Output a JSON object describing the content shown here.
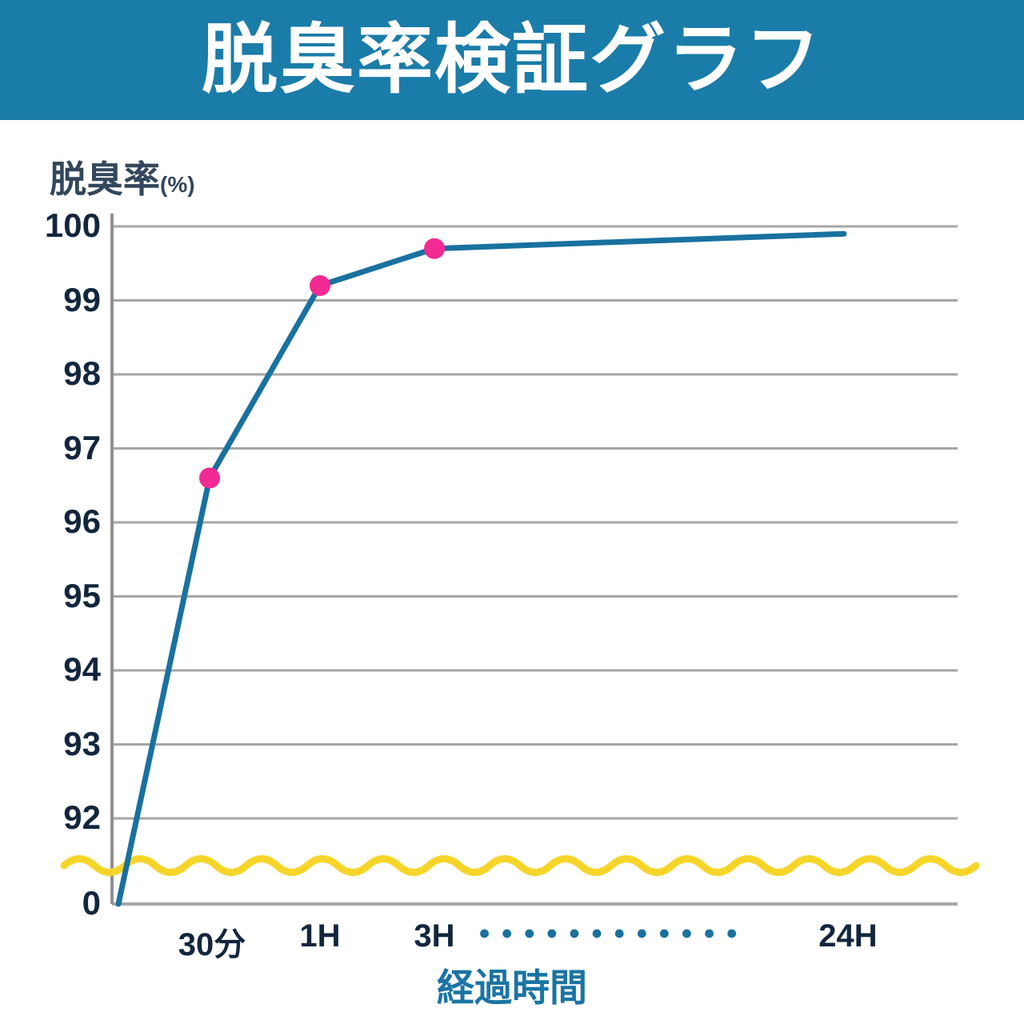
{
  "header": {
    "title": "脱臭率検証グラフ",
    "bg_color": "#1a7ca8",
    "text_color": "#ffffff"
  },
  "chart_data": {
    "type": "line",
    "title": "脱臭率検証グラフ",
    "ylabel": "脱臭率",
    "ylabel_unit": "(%)",
    "xlabel": "経過時間",
    "y_axis": {
      "ticks": [
        100,
        99,
        98,
        97,
        96,
        95,
        94,
        93,
        92,
        0
      ],
      "axis_break_between": [
        92,
        0
      ],
      "ylim_visible": [
        92,
        100
      ]
    },
    "x_axis": {
      "ticks": [
        "30分",
        "1H",
        "3H",
        "24H"
      ],
      "ellipsis_dots": 12,
      "dot_char": "●"
    },
    "grid": true,
    "series": [
      {
        "name": "脱臭率",
        "x": [
          "0",
          "30分",
          "1H",
          "3H",
          "24H"
        ],
        "values": [
          0,
          96.6,
          99.2,
          99.7,
          99.9
        ],
        "marker_x": [
          "30分",
          "1H",
          "3H"
        ]
      }
    ],
    "colors": {
      "line": "#19719f",
      "marker": "#f22a93",
      "grid": "#a6a6a6",
      "axis": "#8f8f8f",
      "wave": "#f6d52a",
      "tick_text": "#12263d",
      "axis_label_text": "#33475c",
      "xlabel_text": "#1b74a3",
      "dots": "#19719f"
    }
  }
}
